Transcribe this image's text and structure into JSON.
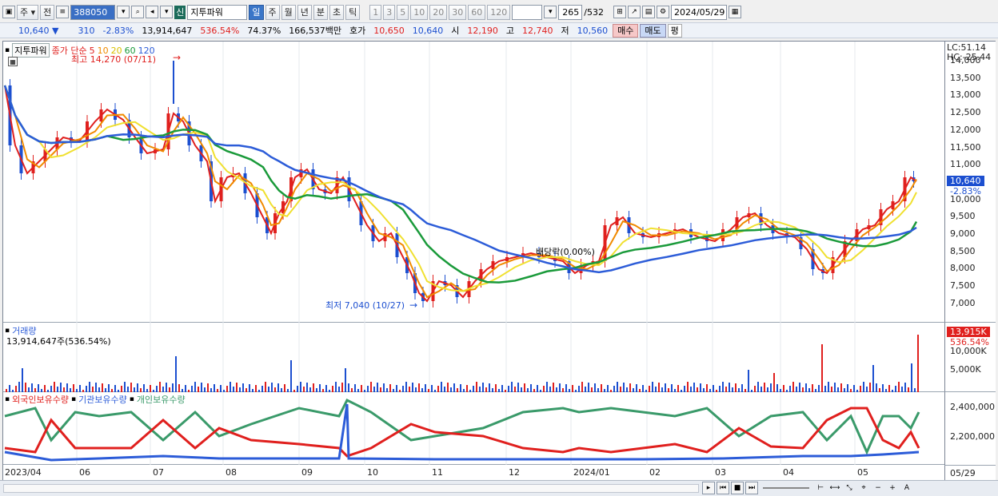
{
  "toolbar": {
    "period_unit": "주",
    "prev_label": "전",
    "code": "388050",
    "market_badge": "신",
    "stock_name": "지투파워",
    "period_tabs": [
      "일",
      "주",
      "월",
      "년",
      "분",
      "초",
      "틱"
    ],
    "minute_options": [
      "1",
      "3",
      "5",
      "10",
      "20",
      "30",
      "60",
      "120"
    ],
    "view_count": "265",
    "view_total": "/532",
    "date": "2024/05/29"
  },
  "infobar": {
    "price": "10,640",
    "change_arrow": "▼",
    "change": "310",
    "change_pct": "-2.83%",
    "volume": "13,914,647",
    "volume_ratio": "536.54%",
    "turnover": "74.37%",
    "amount": "166,537백만",
    "quote_label": "호가",
    "ask": "10,650",
    "bid": "10,640",
    "open_label": "시",
    "open": "12,190",
    "high_label": "고",
    "high": "12,740",
    "low_label": "저",
    "low": "10,560",
    "buy_label": "매수",
    "sell_label": "매도",
    "avg_label": "평"
  },
  "price_pane": {
    "name_tag": "지투파워",
    "ma_label": "종가 단순",
    "ma_periods": [
      "5",
      "10",
      "20",
      "60",
      "120"
    ],
    "ma_colors": [
      "#e0201e",
      "#f08a00",
      "#f0e030",
      "#1a9a3a",
      "#2c5cd8"
    ],
    "max_annotation": "최고 14,270 (07/11)",
    "min_annotation": "최저 7,040 (10/27)",
    "dividend_annotation": "배당락(0.00%)",
    "lc": "LC:51.14",
    "hc": "HC:-25.44",
    "current_price_tag": "10,640",
    "current_pct_tag": "-2.83%",
    "y_ticks": [
      "14,000",
      "13,500",
      "13,000",
      "12,500",
      "12,000",
      "11,500",
      "11,000",
      "10,500",
      "10,000",
      "9,500",
      "9,000",
      "8,500",
      "8,000",
      "7,500",
      "7,000"
    ]
  },
  "volume_pane": {
    "title": "거래량",
    "subtitle": "13,914,647주(536.54%)",
    "tag_value": "13,915K",
    "tag_pct": "536.54%",
    "y_ticks": [
      "10,000K",
      "5,000K"
    ]
  },
  "holdings_pane": {
    "legend": [
      "외국인보유수량",
      "기관보유수량",
      "개인보유수량"
    ],
    "colors": [
      "#e0201e",
      "#2c5cd8",
      "#3a9a6a"
    ],
    "y_ticks": [
      "2,400,000",
      "2,200,000"
    ]
  },
  "x_axis": {
    "labels": [
      "2023/04",
      "06",
      "07",
      "08",
      "09",
      "10",
      "11",
      "12",
      "2024/01",
      "02",
      "03",
      "04",
      "05"
    ],
    "last_date": "05/29"
  }
}
